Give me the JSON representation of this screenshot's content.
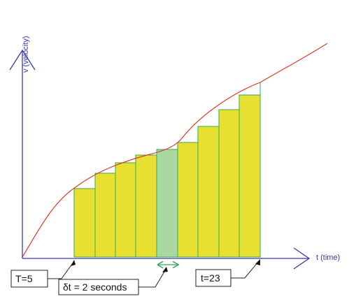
{
  "diagram": {
    "y_axis_label": "v (velocity)",
    "x_axis_label": "t (time)",
    "labels": {
      "start": "T=5",
      "end": "t=23",
      "delta": "δt = 2 seconds"
    },
    "colors": {
      "axis": "#3a3aa8",
      "curve": "#e03a2a",
      "bar_fill": "#e8e030",
      "bar_highlight_fill": "#a8d8a0",
      "bar_stroke": "#33aa55"
    },
    "bars": [
      {
        "highlight": false
      },
      {
        "highlight": false
      },
      {
        "highlight": false
      },
      {
        "highlight": false
      },
      {
        "highlight": true
      },
      {
        "highlight": false
      },
      {
        "highlight": false
      },
      {
        "highlight": false
      },
      {
        "highlight": false
      }
    ]
  }
}
